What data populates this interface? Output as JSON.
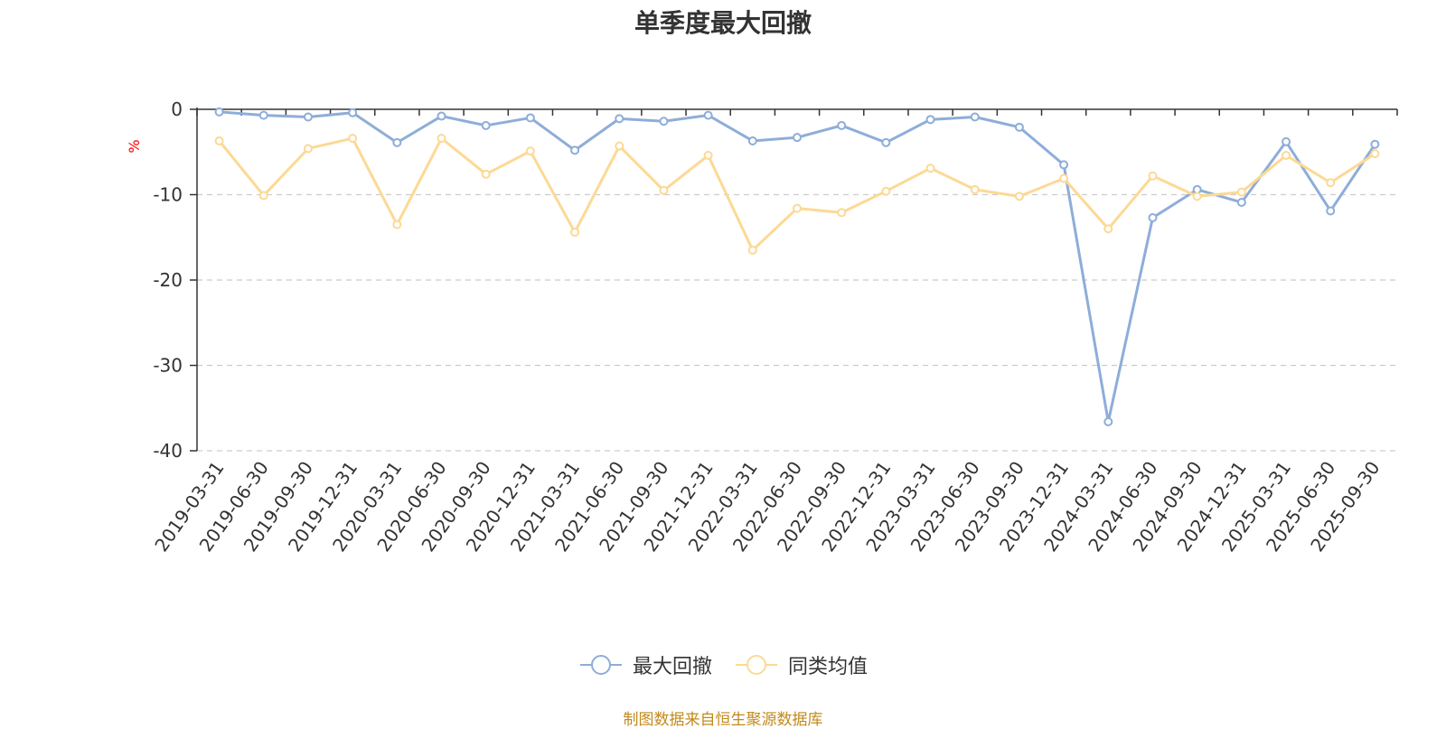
{
  "chart_data": {
    "type": "line",
    "title": "单季度最大回撤",
    "ylabel": "%",
    "ylim": [
      -40,
      0
    ],
    "yticks": [
      0,
      -10,
      -20,
      -30,
      -40
    ],
    "grid": true,
    "legend_position": "bottom-center",
    "categories": [
      "2019-03-31",
      "2019-06-30",
      "2019-09-30",
      "2019-12-31",
      "2020-03-31",
      "2020-06-30",
      "2020-09-30",
      "2020-12-31",
      "2021-03-31",
      "2021-06-30",
      "2021-09-30",
      "2021-12-31",
      "2022-03-31",
      "2022-06-30",
      "2022-09-30",
      "2022-12-31",
      "2023-03-31",
      "2023-06-30",
      "2023-09-30",
      "2023-12-31",
      "2024-03-31",
      "2024-06-30",
      "2024-09-30",
      "2024-12-31",
      "2025-03-31",
      "2025-06-30",
      "2025-09-30"
    ],
    "series": [
      {
        "name": "最大回撤",
        "color": "#8eadd9",
        "values": [
          -0.3,
          -0.7,
          -0.9,
          -0.4,
          -3.9,
          -0.8,
          -1.9,
          -1.0,
          -4.8,
          -1.1,
          -1.4,
          -0.7,
          -3.7,
          -3.3,
          -1.9,
          -3.9,
          -1.2,
          -0.9,
          -2.1,
          -6.5,
          -36.6,
          -12.7,
          -9.4,
          -10.9,
          -3.8,
          -11.9,
          -4.1
        ]
      },
      {
        "name": "同类均值",
        "color": "#fcd994",
        "values": [
          -3.7,
          -10.1,
          -4.6,
          -3.4,
          -13.5,
          -3.4,
          -7.6,
          -4.9,
          -14.4,
          -4.3,
          -9.5,
          -5.4,
          -16.5,
          -11.6,
          -12.1,
          -9.6,
          -6.9,
          -9.4,
          -10.2,
          -8.1,
          -14.0,
          -7.8,
          -10.2,
          -9.7,
          -5.4,
          -8.6,
          -5.2
        ]
      }
    ]
  },
  "source_note": "制图数据来自恒生聚源数据库"
}
